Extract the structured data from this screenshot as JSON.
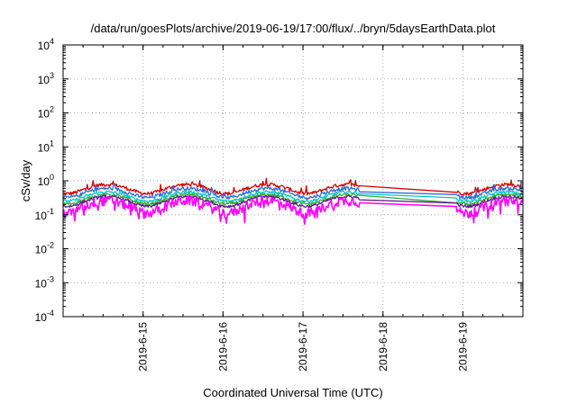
{
  "chart_data": {
    "type": "line",
    "title": "/data/run/goesPlots/archive/2019-06-19/17:00/flux/../bryn/5daysEarthData.plot",
    "xlabel": "Coordinated Universal Time (UTC)",
    "ylabel": "cSv/day",
    "y_scale": "log",
    "ylim": [
      0.0001,
      10000
    ],
    "xlim": [
      "2019-06-14T00:00",
      "2019-06-19T18:00"
    ],
    "grid": true,
    "y_ticks": [
      {
        "base": "10",
        "exp": "-4"
      },
      {
        "base": "10",
        "exp": "-3"
      },
      {
        "base": "10",
        "exp": "-2"
      },
      {
        "base": "10",
        "exp": "-1"
      },
      {
        "base": "10",
        "exp": "0"
      },
      {
        "base": "10",
        "exp": "1"
      },
      {
        "base": "10",
        "exp": "2"
      },
      {
        "base": "10",
        "exp": "3"
      },
      {
        "base": "10",
        "exp": "4"
      }
    ],
    "x_ticks": [
      {
        "label": "2019-6-15",
        "t": "2019-06-15T00:00"
      },
      {
        "label": "2019-6-16",
        "t": "2019-06-16T00:00"
      },
      {
        "label": "2019-6-17",
        "t": "2019-06-17T00:00"
      },
      {
        "label": "2019-6-18",
        "t": "2019-06-18T00:00"
      },
      {
        "label": "2019-6-19",
        "t": "2019-06-19T00:00"
      }
    ],
    "data_gap": [
      "2019-06-17T17:00",
      "2019-06-18T22:00"
    ],
    "series": [
      {
        "color": "#d40000",
        "base": 0.6,
        "amp": 0.3,
        "noise": 0.12
      },
      {
        "color": "#2e6bd6",
        "base": 0.46,
        "amp": 0.3,
        "noise": 0.12
      },
      {
        "color": "#00c8c8",
        "base": 0.36,
        "amp": 0.3,
        "noise": 0.1
      },
      {
        "color": "#33aa33",
        "base": 0.3,
        "amp": 0.3,
        "noise": 0.1
      },
      {
        "color": "#5a1a8a",
        "base": 0.26,
        "amp": 0.32,
        "noise": 0.1
      },
      {
        "color": "#ff00ff",
        "base": 0.19,
        "amp": 0.4,
        "noise": 0.32
      }
    ]
  }
}
